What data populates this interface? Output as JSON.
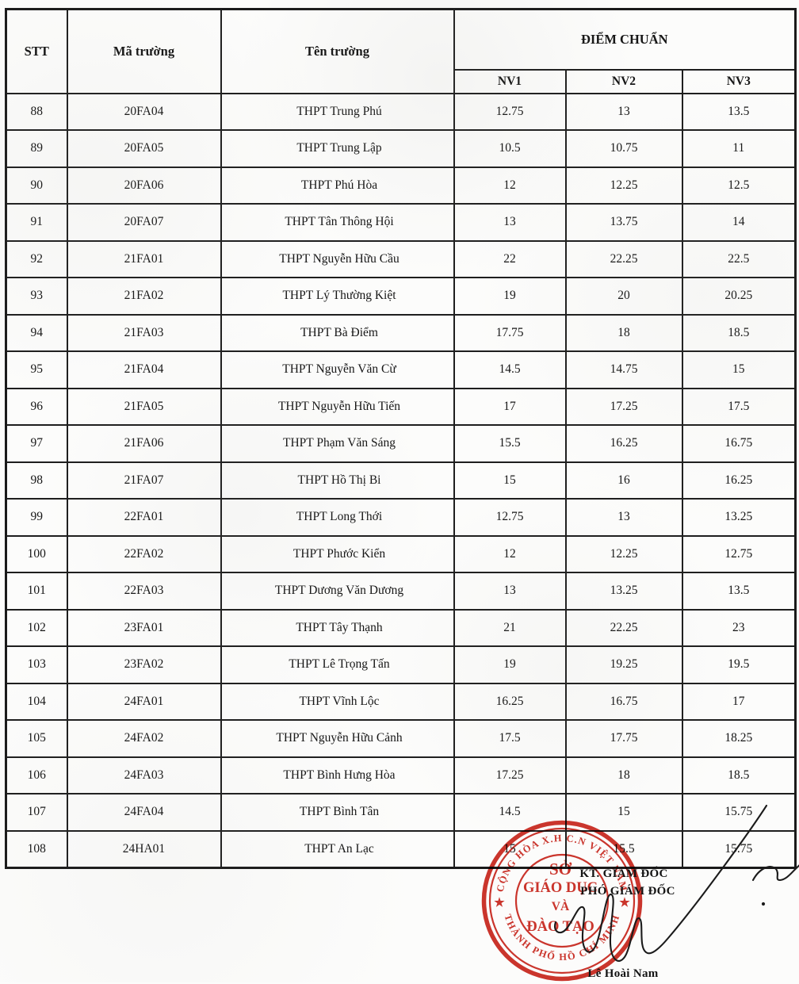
{
  "table": {
    "headers": {
      "stt": "STT",
      "ma_truong": "Mã trường",
      "ten_truong": "Tên trường",
      "diem_chuan": "ĐIỂM CHUẨN",
      "nv1": "NV1",
      "nv2": "NV2",
      "nv3": "NV3"
    },
    "rows": [
      {
        "stt": "88",
        "code": "20FA04",
        "name": "THPT Trung Phú",
        "nv1": "12.75",
        "nv2": "13",
        "nv3": "13.5"
      },
      {
        "stt": "89",
        "code": "20FA05",
        "name": "THPT Trung Lập",
        "nv1": "10.5",
        "nv2": "10.75",
        "nv3": "11"
      },
      {
        "stt": "90",
        "code": "20FA06",
        "name": "THPT Phú Hòa",
        "nv1": "12",
        "nv2": "12.25",
        "nv3": "12.5"
      },
      {
        "stt": "91",
        "code": "20FA07",
        "name": "THPT Tân Thông Hội",
        "nv1": "13",
        "nv2": "13.75",
        "nv3": "14"
      },
      {
        "stt": "92",
        "code": "21FA01",
        "name": "THPT Nguyễn Hữu Cầu",
        "nv1": "22",
        "nv2": "22.25",
        "nv3": "22.5"
      },
      {
        "stt": "93",
        "code": "21FA02",
        "name": "THPT Lý Thường Kiệt",
        "nv1": "19",
        "nv2": "20",
        "nv3": "20.25"
      },
      {
        "stt": "94",
        "code": "21FA03",
        "name": "THPT Bà Điểm",
        "nv1": "17.75",
        "nv2": "18",
        "nv3": "18.5"
      },
      {
        "stt": "95",
        "code": "21FA04",
        "name": "THPT Nguyễn Văn Cừ",
        "nv1": "14.5",
        "nv2": "14.75",
        "nv3": "15"
      },
      {
        "stt": "96",
        "code": "21FA05",
        "name": "THPT Nguyễn Hữu Tiến",
        "nv1": "17",
        "nv2": "17.25",
        "nv3": "17.5"
      },
      {
        "stt": "97",
        "code": "21FA06",
        "name": "THPT Phạm Văn Sáng",
        "nv1": "15.5",
        "nv2": "16.25",
        "nv3": "16.75"
      },
      {
        "stt": "98",
        "code": "21FA07",
        "name": "THPT Hồ Thị Bi",
        "nv1": "15",
        "nv2": "16",
        "nv3": "16.25"
      },
      {
        "stt": "99",
        "code": "22FA01",
        "name": "THPT Long Thới",
        "nv1": "12.75",
        "nv2": "13",
        "nv3": "13.25"
      },
      {
        "stt": "100",
        "code": "22FA02",
        "name": "THPT Phước Kiển",
        "nv1": "12",
        "nv2": "12.25",
        "nv3": "12.75"
      },
      {
        "stt": "101",
        "code": "22FA03",
        "name": "THPT Dương Văn Dương",
        "nv1": "13",
        "nv2": "13.25",
        "nv3": "13.5"
      },
      {
        "stt": "102",
        "code": "23FA01",
        "name": "THPT Tây Thạnh",
        "nv1": "21",
        "nv2": "22.25",
        "nv3": "23"
      },
      {
        "stt": "103",
        "code": "23FA02",
        "name": "THPT Lê Trọng Tấn",
        "nv1": "19",
        "nv2": "19.25",
        "nv3": "19.5"
      },
      {
        "stt": "104",
        "code": "24FA01",
        "name": "THPT Vĩnh Lộc",
        "nv1": "16.25",
        "nv2": "16.75",
        "nv3": "17"
      },
      {
        "stt": "105",
        "code": "24FA02",
        "name": "THPT Nguyễn Hữu Cảnh",
        "nv1": "17.5",
        "nv2": "17.75",
        "nv3": "18.25"
      },
      {
        "stt": "106",
        "code": "24FA03",
        "name": "THPT Bình Hưng Hòa",
        "nv1": "17.25",
        "nv2": "18",
        "nv3": "18.5"
      },
      {
        "stt": "107",
        "code": "24FA04",
        "name": "THPT Bình Tân",
        "nv1": "14.5",
        "nv2": "15",
        "nv3": "15.75"
      },
      {
        "stt": "108",
        "code": "24HA01",
        "name": "THPT An Lạc",
        "nv1": "15",
        "nv2": "15.5",
        "nv3": "15.75"
      }
    ]
  },
  "stamp": {
    "arc_top": "CỘNG HÒA X.H C.N VIỆT NAM",
    "arc_bottom": "THÀNH PHỐ HỒ CHÍ MINH",
    "star": "★",
    "line1": "SỞ",
    "line2": "GIÁO DỤC",
    "line3": "VÀ",
    "line4": "ĐÀO TẠO",
    "color": "#c9251c"
  },
  "signature_block": {
    "kt_label": "KT. GIÁM ĐỐC",
    "deputy_label": "PHÓ GIÁM ĐỐC",
    "signer_name": "Lê Hoài Nam"
  }
}
